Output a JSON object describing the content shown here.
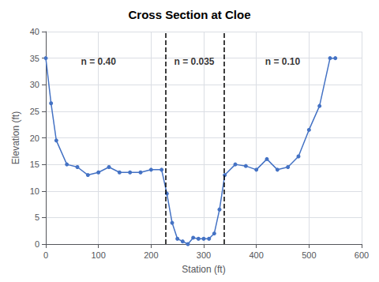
{
  "chart_data": {
    "type": "line",
    "title": "Cross Section at Cloe",
    "xlabel": "Station (ft)",
    "ylabel": "Elevation (ft)",
    "x": [
      0,
      10,
      20,
      40,
      60,
      80,
      100,
      120,
      140,
      160,
      180,
      200,
      220,
      230,
      240,
      250,
      260,
      270,
      280,
      290,
      300,
      310,
      320,
      330,
      340,
      360,
      380,
      400,
      420,
      440,
      460,
      480,
      500,
      520,
      540,
      550
    ],
    "values": [
      35,
      26.5,
      19.5,
      15,
      14.5,
      13,
      13.5,
      14.5,
      13.5,
      13.5,
      13.5,
      14,
      14,
      9.5,
      4,
      1,
      0.5,
      0,
      1.2,
      1,
      1,
      1,
      2,
      6.5,
      13,
      15,
      14.7,
      14,
      16,
      14,
      14.5,
      16.5,
      21.5,
      26,
      35,
      35
    ],
    "color": "#4472C4",
    "marker": "circle",
    "xlim": [
      0,
      600
    ],
    "xticks": [
      0,
      100,
      200,
      300,
      400,
      500,
      600
    ],
    "ylim": [
      0,
      40
    ],
    "yticks": [
      0,
      5,
      10,
      15,
      20,
      25,
      30,
      35,
      40
    ],
    "grid": true,
    "vlines": [
      228,
      338
    ],
    "annotations": [
      {
        "x": 100,
        "y": 35.5,
        "text": "n = 0.40"
      },
      {
        "x": 282,
        "y": 35.5,
        "text": "n = 0.035"
      },
      {
        "x": 450,
        "y": 35.5,
        "text": "n = 0.10"
      }
    ]
  }
}
